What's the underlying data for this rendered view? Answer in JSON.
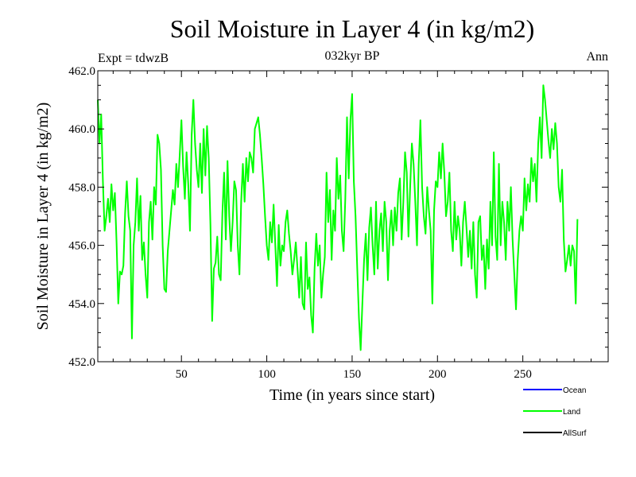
{
  "chart_data": {
    "type": "line",
    "title": "Soil Moisture in Layer 4 (in kg/m2)",
    "subtitle": "032kyr BP",
    "experiment_label": "Expt = tdwzB",
    "period_label": "Ann",
    "xlabel": "Time (in years since start)",
    "ylabel": "Soil Moisture in Layer 4 (in kg/m2)",
    "xlim": [
      1,
      300
    ],
    "ylim": [
      452.0,
      462.0
    ],
    "x_ticks": [
      50,
      100,
      150,
      200,
      250
    ],
    "y_ticks": [
      452.0,
      454.0,
      456.0,
      458.0,
      460.0,
      462.0
    ],
    "legend": [
      {
        "name": "Ocean",
        "color": "#0000ff"
      },
      {
        "name": "Land",
        "color": "#00ff00"
      },
      {
        "name": "AllSurf",
        "color": "#000000"
      }
    ],
    "series": [
      {
        "name": "Land",
        "color": "#00ff00",
        "x_start": 1,
        "x_step": 1,
        "values": [
          461.0,
          459.5,
          460.5,
          458.2,
          456.5,
          457.0,
          457.6,
          456.8,
          458.1,
          457.2,
          457.8,
          456.1,
          454.0,
          455.1,
          455.0,
          455.3,
          457.1,
          458.2,
          457.0,
          456.5,
          452.8,
          456.0,
          456.8,
          458.3,
          456.5,
          457.7,
          455.5,
          456.1,
          455.0,
          454.2,
          456.8,
          457.5,
          456.2,
          458.0,
          457.4,
          459.8,
          459.5,
          458.6,
          456.0,
          454.5,
          454.4,
          455.8,
          456.5,
          457.2,
          457.9,
          457.4,
          458.8,
          458.0,
          459.1,
          460.3,
          458.7,
          457.6,
          459.2,
          458.1,
          456.5,
          459.8,
          461.0,
          459.5,
          458.6,
          458.0,
          459.5,
          457.8,
          460.0,
          458.4,
          460.1,
          459.0,
          456.7,
          453.4,
          455.2,
          455.4,
          456.3,
          455.0,
          454.8,
          457.1,
          458.5,
          456.2,
          458.9,
          457.0,
          455.8,
          456.8,
          458.2,
          457.9,
          456.0,
          455.0,
          457.5,
          458.8,
          457.5,
          459.0,
          458.2,
          459.2,
          459.0,
          458.5,
          460.0,
          460.2,
          460.4,
          459.8,
          459.0,
          458.1,
          457.0,
          456.0,
          455.5,
          456.8,
          456.1,
          457.4,
          456.0,
          454.6,
          456.7,
          455.3,
          456.0,
          455.8,
          456.8,
          457.2,
          456.4,
          455.8,
          455.0,
          455.5,
          456.1,
          455.2,
          454.2,
          455.6,
          454.0,
          453.8,
          456.1,
          454.5,
          454.9,
          453.6,
          453.0,
          455.2,
          456.4,
          455.3,
          456.0,
          454.2,
          455.0,
          455.6,
          458.5,
          456.8,
          457.9,
          455.5,
          457.2,
          456.5,
          459.0,
          457.6,
          458.4,
          456.5,
          455.8,
          457.6,
          460.4,
          458.3,
          460.3,
          461.2,
          458.2,
          457.0,
          455.2,
          453.5,
          452.4,
          454.0,
          455.5,
          456.4,
          454.8,
          456.6,
          457.3,
          456.0,
          455.0,
          457.5,
          455.2,
          456.5,
          457.1,
          455.8,
          457.5,
          456.8,
          454.8,
          456.5,
          457.2,
          456.0,
          457.3,
          456.5,
          457.8,
          458.3,
          456.2,
          457.5,
          459.2,
          458.5,
          456.3,
          458.0,
          459.5,
          458.8,
          457.5,
          456.0,
          458.8,
          460.3,
          458.0,
          457.0,
          456.4,
          458.0,
          457.2,
          456.5,
          454.0,
          457.2,
          458.2,
          458.0,
          459.2,
          458.3,
          459.5,
          458.5,
          457.0,
          457.5,
          458.5,
          456.5,
          455.8,
          457.5,
          456.2,
          457.0,
          456.5,
          455.3,
          456.8,
          457.5,
          456.6,
          455.6,
          456.5,
          455.2,
          456.8,
          455.0,
          454.2,
          456.8,
          457.0,
          455.5,
          456.0,
          454.5,
          456.2,
          455.2,
          457.5,
          456.0,
          459.2,
          456.3,
          455.5,
          458.8,
          456.0,
          457.5,
          456.8,
          455.5,
          457.5,
          456.5,
          458.0,
          456.2,
          455.0,
          453.8,
          455.5,
          456.5,
          457.0,
          456.5,
          458.3,
          457.2,
          458.1,
          457.5,
          459.0,
          458.2,
          458.8,
          457.5,
          459.5,
          460.4,
          459.0,
          461.5,
          461.0,
          460.3,
          459.6,
          459.0,
          460.0,
          459.3,
          460.2,
          459.5,
          458.0,
          457.5,
          458.6,
          456.2,
          455.1,
          455.5,
          456.0,
          455.3,
          456.0,
          455.8,
          454.0,
          456.9
        ]
      }
    ]
  }
}
